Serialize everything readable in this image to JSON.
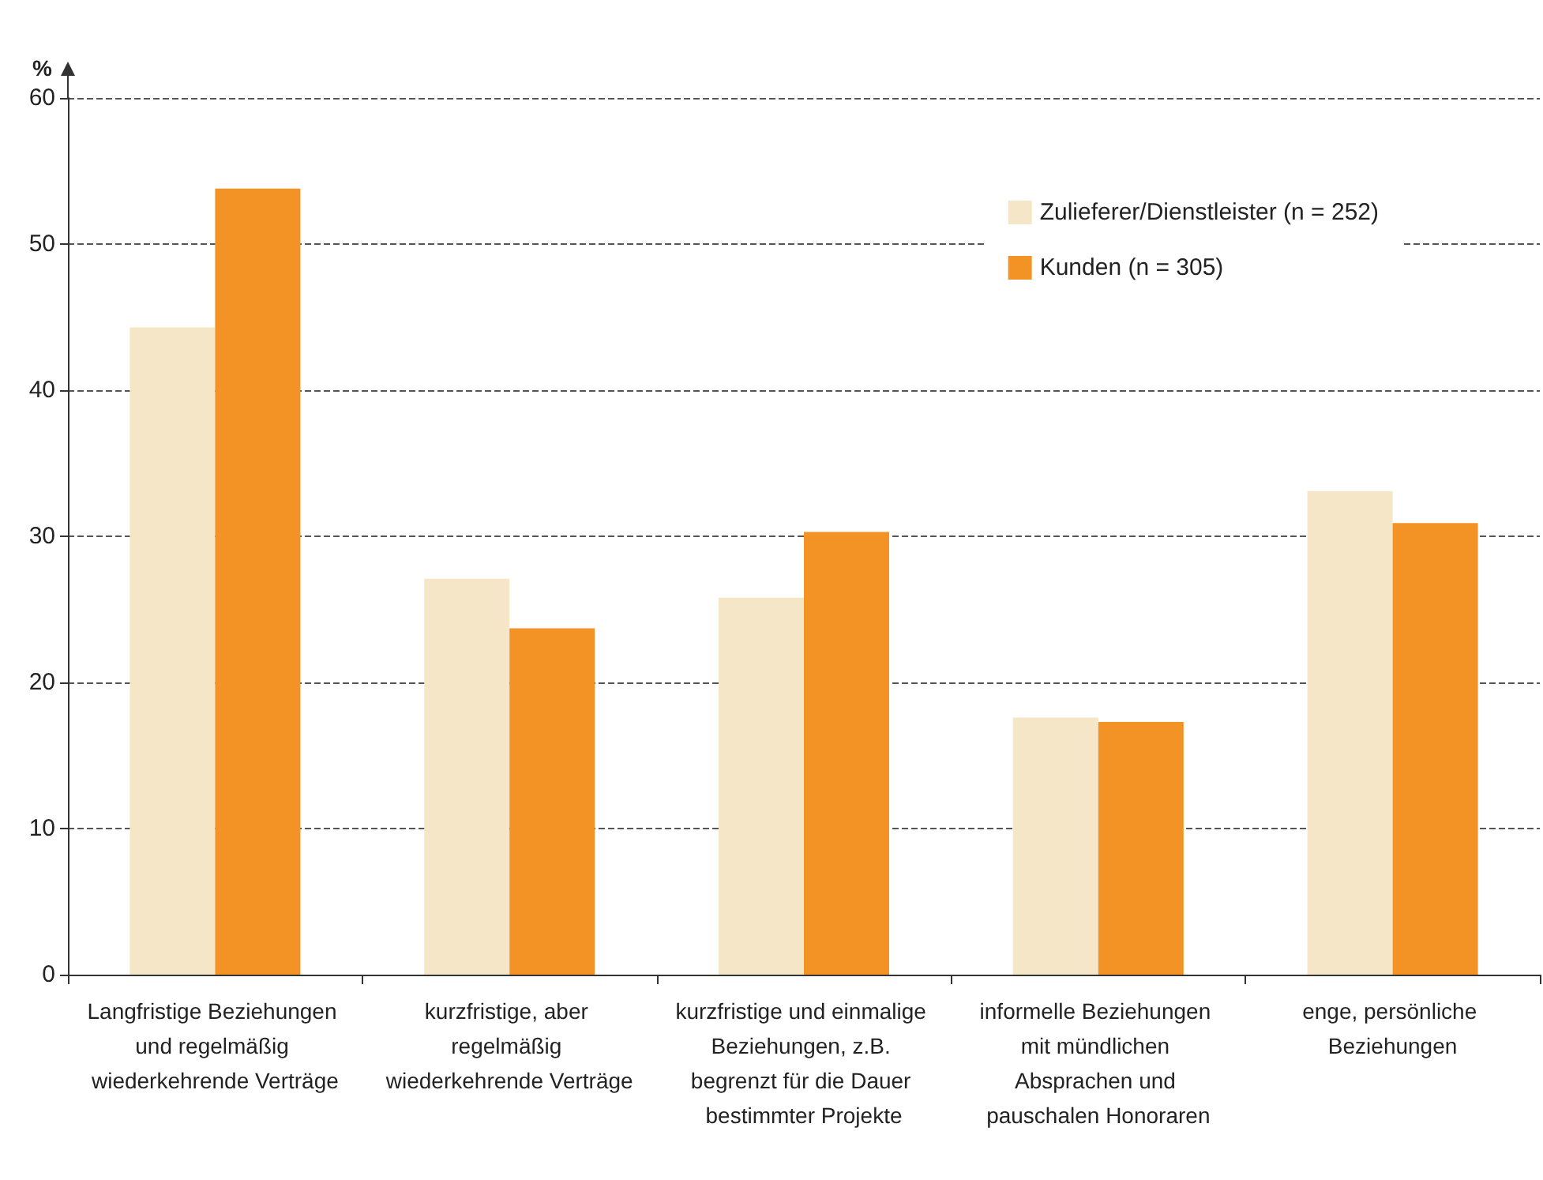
{
  "chart_data": {
    "type": "bar",
    "ylabel": "%",
    "categories": [
      "Langfristige Beziehungen und regelmäßig wiederkehrende Verträge",
      "kurzfristige, aber regelmäßig wiederkehrende Verträge",
      "kurzfristige und einmalige Beziehungen, z.B. begrenzt für die Dauer bestimmter Projekte",
      "informelle Beziehungen mit mündlichen Absprachen und pauschalen Honoraren",
      "enge, persönliche Beziehungen"
    ],
    "series": [
      {
        "name": "Zulieferer/Dienstleister (n = 252)",
        "color": "#f5e6c8",
        "values": [
          44.3,
          27.1,
          25.8,
          17.6,
          33.1
        ]
      },
      {
        "name": "Kunden (n = 305)",
        "color": "#f39325",
        "values": [
          53.8,
          23.7,
          30.3,
          17.3,
          30.9
        ]
      }
    ],
    "ylim": [
      0,
      60
    ],
    "yticks": [
      0,
      10,
      20,
      30,
      40,
      50,
      60
    ],
    "grid": "y",
    "legend": "top right"
  }
}
